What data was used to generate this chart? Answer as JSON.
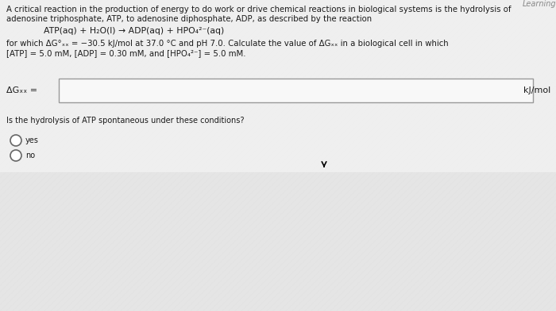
{
  "bg_color": "#c8c8c8",
  "panel_bg": "#e0e0e0",
  "stripe_color": "#d0d0d0",
  "top_panel_color": "#f0f0f0",
  "text_color": "#1a1a1a",
  "line1": "A critical reaction in the production of energy to do work or drive chemical reactions in biological systems is the hydrolysis of",
  "line2": "adenosine triphosphate, ATP, to adenosine diphosphate, ADP, as described by the reaction",
  "reaction": "ATP(aq) + H₂O(l) → ADP(aq) + HPO₄²⁻(aq)",
  "cond1": "for which ΔG°ₓₓ = −30.5 kJ/mol at 37.0 °C and pH 7.0. Calculate the value of ΔGₓₓ in a biological cell in which",
  "cond2": "[ATP] = 5.0 mM, [ADP] = 0.30 mM, and [HPO₄²⁻] = 5.0 mM.",
  "label_dg": "ΔGₓₓ =",
  "unit": "kJ/mol",
  "question": "Is the hydrolysis of ATP spontaneous under these conditions?",
  "yes": "yes",
  "no": "no",
  "box_face": "#f8f8f8",
  "box_edge": "#999999",
  "watermark": "Learning"
}
